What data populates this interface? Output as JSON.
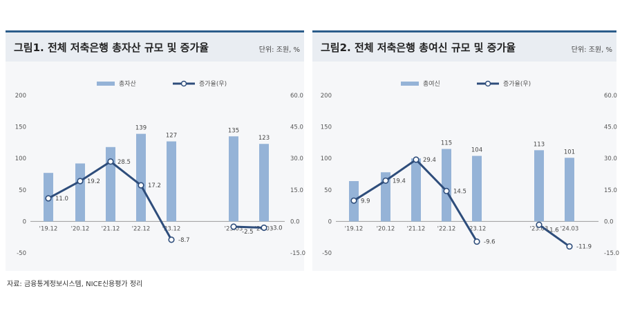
{
  "source_note": "자료: 금융통계정보시스템, NICE신용평가 정리",
  "colors": {
    "bar": "#95b3d7",
    "line": "#2e4d7b",
    "header_bg": "#e9edf2",
    "rule": "#2b5c8a"
  },
  "panels": [
    {
      "title": "그림1. 전체 저축은행 총자산 규모 및 증가율",
      "unit": "단위: 조원, %"
    },
    {
      "title": "그림2. 전체 저축은행 총여신 규모 및 증가율",
      "unit": "단위: 조원, %"
    }
  ],
  "chart_data": [
    {
      "type": "bar",
      "categories": [
        "'19.12",
        "'20.12",
        "'21.12",
        "'22.12",
        "'23.12",
        "'23.03",
        "'24.03"
      ],
      "series": [
        {
          "name": "총자산",
          "type": "bar",
          "axis": "left",
          "values": [
            77,
            92,
            118,
            139,
            127,
            135,
            123
          ],
          "labels": [
            "",
            "",
            "",
            "139",
            "127",
            "135",
            "123"
          ]
        },
        {
          "name": "증가율(우)",
          "type": "line",
          "axis": "right",
          "values": [
            11.0,
            19.2,
            28.5,
            17.2,
            -8.7,
            -2.5,
            -3.0
          ],
          "labels": [
            "11.0",
            "19.2",
            "28.5",
            "17.2",
            "-8.7",
            "-2.5",
            "-3.0"
          ],
          "segments": [
            [
              0,
              4
            ],
            [
              5,
              6
            ]
          ]
        }
      ],
      "y_left": {
        "ticks": [
          "200",
          "150",
          "100",
          "50",
          "0",
          "-50"
        ],
        "ylim": [
          -50,
          200
        ]
      },
      "y_right": {
        "ticks": [
          "60.0",
          "45.0",
          "30.0",
          "15.0",
          "0.0",
          "-15.0"
        ],
        "ylim": [
          -15,
          60
        ]
      },
      "legend": "top-center"
    },
    {
      "type": "bar",
      "categories": [
        "'19.12",
        "'20.12",
        "'21.12",
        "'22.12",
        "'23.12",
        "'23.03",
        "'24.03"
      ],
      "series": [
        {
          "name": "총여신",
          "type": "bar",
          "axis": "left",
          "values": [
            64,
            78,
            100,
            115,
            104,
            113,
            101
          ],
          "labels": [
            "",
            "",
            "",
            "115",
            "104",
            "113",
            "101"
          ]
        },
        {
          "name": "증가율(우)",
          "type": "line",
          "axis": "right",
          "values": [
            9.9,
            19.4,
            29.4,
            14.5,
            -9.6,
            -1.6,
            -11.9
          ],
          "labels": [
            "9.9",
            "19.4",
            "29.4",
            "14.5",
            "-9.6",
            "-1.6",
            "-11.9"
          ],
          "segments": [
            [
              0,
              4
            ],
            [
              5,
              6
            ]
          ]
        }
      ],
      "y_left": {
        "ticks": [
          "200",
          "150",
          "100",
          "50",
          "0",
          "-50"
        ],
        "ylim": [
          -50,
          200
        ]
      },
      "y_right": {
        "ticks": [
          "60.0",
          "45.0",
          "30.0",
          "15.0",
          "0.0",
          "-15.0"
        ],
        "ylim": [
          -15,
          60
        ]
      },
      "legend": "top-center"
    }
  ]
}
